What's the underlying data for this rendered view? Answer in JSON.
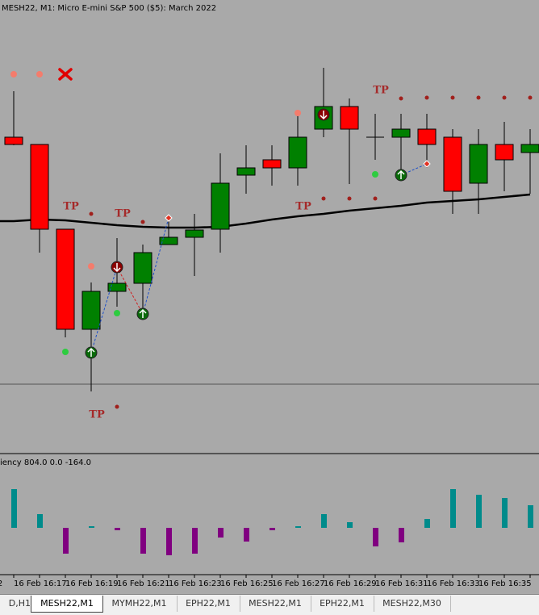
{
  "chart_data": [
    {
      "type": "candlestick",
      "title": "MESH22, M1:  Micro E-mini S&P 500 ($5): March 2022",
      "categories": [
        "16 Feb 16:17",
        null,
        "16 Feb 16:19",
        null,
        "16 Feb 16:21",
        null,
        "16 Feb 16:23",
        null,
        "16 Feb 16:25",
        null,
        "16 Feb 16:27",
        null,
        "16 Feb 16:29",
        null,
        "16 Feb 16:31",
        null,
        "16 Feb 16:33",
        null,
        "16 Feb 16:35",
        null,
        null
      ],
      "edge_label": "2",
      "open": [
        390,
        381,
        276,
        152,
        199,
        209,
        257,
        266,
        276,
        343,
        362,
        352,
        400,
        428,
        390,
        390,
        400,
        390,
        333,
        381,
        371
      ],
      "high": [
        447,
        381,
        276,
        210,
        265,
        257,
        290,
        295,
        370,
        380,
        380,
        420,
        476,
        438,
        419,
        419,
        419,
        400,
        400,
        409,
        400
      ],
      "low": [
        380,
        247,
        142,
        75,
        180,
        171,
        257,
        218,
        247,
        320,
        330,
        330,
        390,
        332,
        362,
        338,
        352,
        295,
        295,
        323,
        320
      ],
      "close": [
        381,
        276,
        152,
        199,
        209,
        247,
        266,
        275,
        333,
        352,
        352,
        390,
        428,
        400,
        390,
        400,
        381,
        323,
        381,
        362,
        381
      ],
      "up_color": "#008000",
      "down_color": "#ff0000",
      "doji_color": "#000000",
      "moving_average": [
        286,
        288,
        287,
        284,
        281,
        279,
        278,
        278,
        279,
        283,
        288,
        292,
        295,
        299,
        302,
        305,
        309,
        311,
        313,
        316,
        319
      ],
      "level": 84,
      "ylim": [
        0,
        560
      ],
      "dots": [
        {
          "color": "#f47c6c",
          "points": [
            [
              0,
              468
            ],
            [
              1,
              468
            ],
            [
              3,
              230
            ],
            [
              11,
              420
            ]
          ]
        },
        {
          "color": "#2ecc40",
          "points": [
            [
              2,
              124
            ],
            [
              4,
              172
            ],
            [
              14,
              344
            ]
          ]
        },
        {
          "color": "#a0201c",
          "points": [
            [
              3,
              295
            ],
            [
              5,
              285
            ],
            [
              4,
              56
            ],
            [
              15,
              438
            ],
            [
              16,
              439
            ],
            [
              17,
              439
            ],
            [
              18,
              439
            ],
            [
              19,
              439
            ],
            [
              20,
              439
            ],
            [
              12,
              314
            ],
            [
              13,
              314
            ],
            [
              14,
              314
            ]
          ]
        }
      ],
      "tp_marks": [
        {
          "label": "TP",
          "at": [
            2,
            304
          ]
        },
        {
          "label": "TP",
          "at": [
            4,
            295
          ]
        },
        {
          "label": "TP",
          "at": [
            3,
            46
          ]
        },
        {
          "label": "TP",
          "at": [
            11,
            304
          ]
        },
        {
          "label": "TP",
          "at": [
            14,
            448
          ]
        }
      ],
      "cross": [
        2,
        468
      ],
      "buy_signals": [
        [
          3,
          123
        ],
        [
          5,
          171
        ],
        [
          15,
          343
        ]
      ],
      "sell_signals": [
        [
          4,
          229
        ],
        [
          12,
          418
        ]
      ],
      "diamonds": [
        [
          6,
          290
        ],
        [
          16,
          357
        ]
      ],
      "links": [
        {
          "color": "#1e50c8",
          "from": [
            3,
            123
          ],
          "to": [
            4,
            229
          ]
        },
        {
          "color": "#d02020",
          "from": [
            4,
            229
          ],
          "to": [
            5,
            171
          ]
        },
        {
          "color": "#1e50c8",
          "from": [
            5,
            171
          ],
          "to": [
            6,
            290
          ]
        },
        {
          "color": "#1e50c8",
          "from": [
            15,
            343
          ],
          "to": [
            16,
            357
          ]
        }
      ]
    },
    {
      "type": "bar",
      "title": "iency 804.0 0.0 -164.0",
      "values": [
        48,
        17,
        -32,
        2,
        -3,
        -32,
        -34,
        -32,
        -12,
        -17,
        -3,
        2,
        17,
        7,
        -23,
        -18,
        11,
        48,
        41,
        37,
        28
      ],
      "pos_color": "#008b8b",
      "neg_color": "#800080"
    }
  ],
  "tabs": [
    "D,H1",
    "MESH22,M1",
    "MYMH22,M1",
    "EPH22,M1",
    "MESH22,M1",
    "EPH22,M1",
    "MESH22,M30"
  ],
  "active_tab": 1
}
